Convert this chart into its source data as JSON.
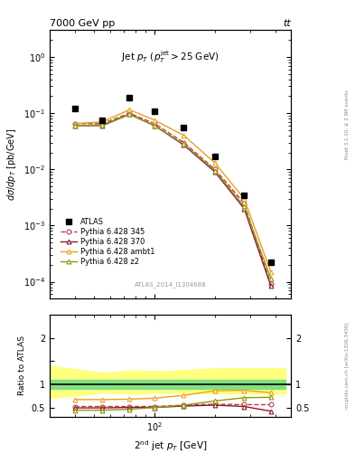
{
  "title_top": "7000 GeV pp",
  "title_top_right": "tt",
  "annotation": "ATLAS_2014_I1304688",
  "right_label_top": "Rivet 3.1.10; ≥ 2.9M events",
  "right_label_bottom": "mcplots.cern.ch [arXiv:1306.3436]",
  "inner_title": "Jet p_{T} (p_{T}^{jet}>25 GeV)",
  "ylabel_main": "dσ/dp_T [pb/GeV]",
  "ylabel_ratio": "Ratio to ATLAS",
  "xlabel": "2^{nd} jet p_{T} [GeV]",
  "x_pts": [
    40,
    55,
    75,
    100,
    140,
    200,
    280,
    380
  ],
  "atlas_y": [
    0.12,
    0.075,
    0.19,
    0.11,
    0.055,
    0.017,
    0.0035,
    0.00022
  ],
  "p345_y": [
    0.065,
    0.065,
    0.1,
    0.065,
    0.03,
    0.01,
    0.0025,
    9e-05
  ],
  "p370_y": [
    0.06,
    0.06,
    0.095,
    0.06,
    0.027,
    0.009,
    0.002,
    8.5e-05
  ],
  "pambt_y": [
    0.065,
    0.07,
    0.115,
    0.075,
    0.04,
    0.013,
    0.003,
    0.00015
  ],
  "pz2_y": [
    0.06,
    0.062,
    0.095,
    0.06,
    0.028,
    0.0095,
    0.0022,
    0.000115
  ],
  "ratio_x": [
    40,
    55,
    75,
    100,
    140,
    200,
    280,
    380
  ],
  "ratio_p345": [
    0.52,
    0.52,
    0.52,
    0.52,
    0.55,
    0.57,
    0.56,
    0.56
  ],
  "ratio_p370": [
    0.49,
    0.49,
    0.5,
    0.5,
    0.53,
    0.55,
    0.52,
    0.42
  ],
  "ratio_pambt": [
    0.67,
    0.67,
    0.68,
    0.7,
    0.76,
    0.86,
    0.87,
    0.82
  ],
  "ratio_pz2": [
    0.44,
    0.44,
    0.46,
    0.5,
    0.55,
    0.64,
    0.71,
    0.72
  ],
  "band_x": [
    30,
    55,
    80,
    110,
    210,
    450
  ],
  "green_band_low": [
    0.9,
    0.9,
    0.9,
    0.9,
    0.9,
    0.9
  ],
  "green_band_high": [
    1.1,
    1.1,
    1.1,
    1.1,
    1.1,
    1.1
  ],
  "yellow_band_low": [
    0.7,
    0.82,
    0.8,
    0.82,
    0.8,
    0.8
  ],
  "yellow_band_high": [
    1.4,
    1.25,
    1.3,
    1.28,
    1.35,
    1.35
  ],
  "color_345": "#c0394b",
  "color_370": "#8b1a2a",
  "color_ambt": "#e8a020",
  "color_z2": "#8a9a10",
  "ylim_main": [
    5e-05,
    3.0
  ],
  "ylim_ratio": [
    0.3,
    2.5
  ],
  "xlim": [
    30,
    480
  ]
}
